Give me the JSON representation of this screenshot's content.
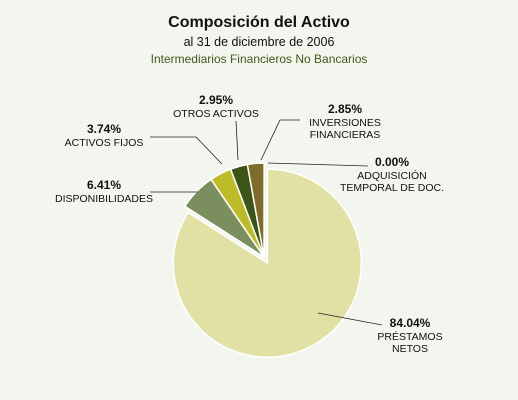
{
  "header": {
    "title": "Composición del Activo",
    "subtitle": "al 31 de diciembre de 2006",
    "subtitle2": "Intermediarios Financieros No Bancarios"
  },
  "chart_data": {
    "type": "pie",
    "title": "Composición del Activo",
    "subtitle": "al 31 de diciembre de 2006 — Intermediarios Financieros No Bancarios",
    "slices": [
      {
        "label": "ADQUISICIÓN TEMPORAL DE DOC.",
        "label_lines": [
          "ADQUISICIÓN",
          "TEMPORAL DE DOC."
        ],
        "value": 0.0,
        "pct_text": "0.00%",
        "color": "#5d4a15"
      },
      {
        "label": "PRÉSTAMOS NETOS",
        "label_lines": [
          "PRÉSTAMOS",
          "NETOS"
        ],
        "value": 84.04,
        "pct_text": "84.04%",
        "color": "#e1e1a6"
      },
      {
        "label": "DISPONIBILIDADES",
        "label_lines": [
          "DISPONIBILIDADES"
        ],
        "value": 6.41,
        "pct_text": "6.41%",
        "color": "#7b8e5e"
      },
      {
        "label": "ACTIVOS FIJOS",
        "label_lines": [
          "ACTIVOS FIJOS"
        ],
        "value": 3.74,
        "pct_text": "3.74%",
        "color": "#bcbb2a"
      },
      {
        "label": "OTROS ACTIVOS",
        "label_lines": [
          "OTROS ACTIVOS"
        ],
        "value": 2.95,
        "pct_text": "2.95%",
        "color": "#3d5417"
      },
      {
        "label": "INVERSIONES FINANCIERAS",
        "label_lines": [
          "INVERSIONES",
          "FINANCIERAS"
        ],
        "value": 2.85,
        "pct_text": "2.85%",
        "color": "#7e6c2c"
      }
    ],
    "exploded_slice": "PRÉSTAMOS NETOS",
    "legend": "none",
    "data_labels": "outside with leader lines"
  }
}
